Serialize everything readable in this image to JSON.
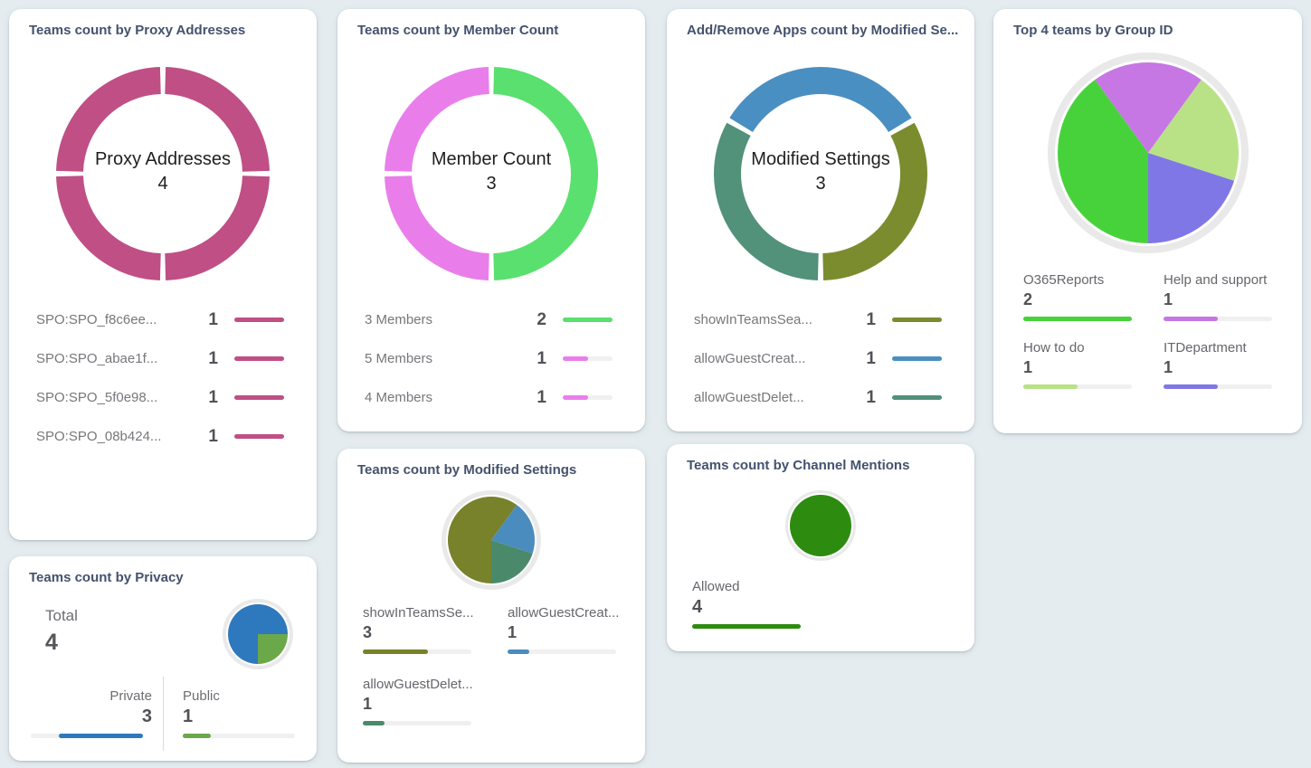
{
  "page": {
    "background": "#e5ecef",
    "bar_track_color": "#f0f0f1",
    "ring_color": "#e9e9e9"
  },
  "chart_data": [
    {
      "id": "teams-count-by-proxy-addresses",
      "type": "donut",
      "title": "Teams count by Proxy Addresses",
      "center_label": "Proxy Addresses",
      "center_value": 4,
      "legend_position": "bottom-list",
      "legend": [
        {
          "label": "SPO:SPO_f8c6ee...",
          "value": 1,
          "color": "#bf4f85"
        },
        {
          "label": "SPO:SPO_abae1f...",
          "value": 1,
          "color": "#bf4f85"
        },
        {
          "label": "SPO:SPO_5f0e98...",
          "value": 1,
          "color": "#bf4f85"
        },
        {
          "label": "SPO:SPO_08b424...",
          "value": 1,
          "color": "#bf4f85"
        }
      ],
      "slices": [
        {
          "value": 1,
          "color": "#bf4f85"
        },
        {
          "value": 1,
          "color": "#bf4f85"
        },
        {
          "value": 1,
          "color": "#bf4f85"
        },
        {
          "value": 1,
          "color": "#bf4f85"
        }
      ],
      "rotation_deg": 0,
      "pad_deg": 3,
      "outer_r": 118,
      "inner_r": 88,
      "bar_norm": "max"
    },
    {
      "id": "teams-count-by-member-count",
      "type": "donut",
      "title": "Teams count by Member Count",
      "center_label": "Member Count",
      "center_value": 3,
      "legend_position": "bottom-list",
      "legend": [
        {
          "label": "3 Members",
          "value": 2,
          "color": "#5ae06e"
        },
        {
          "label": "5 Members",
          "value": 1,
          "color": "#e97eeb"
        },
        {
          "label": "4 Members",
          "value": 1,
          "color": "#e97eeb"
        }
      ],
      "slices": [
        {
          "value": 2,
          "color": "#5ae06e"
        },
        {
          "value": 1,
          "color": "#e97eeb"
        },
        {
          "value": 1,
          "color": "#e97eeb"
        }
      ],
      "rotation_deg": 0,
      "pad_deg": 3,
      "outer_r": 118,
      "inner_r": 88,
      "bar_norm": "max"
    },
    {
      "id": "apps-count-by-modified-settings",
      "type": "donut",
      "title": "Add/Remove Apps count by Modified Se...",
      "center_label": "Modified Settings",
      "center_value": 3,
      "legend_position": "bottom-list",
      "legend": [
        {
          "label": "showInTeamsSea...",
          "value": 1,
          "color": "#7b8c2f"
        },
        {
          "label": "allowGuestCreat...",
          "value": 1,
          "color": "#4a8fc2"
        },
        {
          "label": "allowGuestDelet...",
          "value": 1,
          "color": "#52917a"
        }
      ],
      "slices": [
        {
          "value": 1,
          "color": "#4a8fc2"
        },
        {
          "value": 1,
          "color": "#7b8c2f"
        },
        {
          "value": 1,
          "color": "#52917a"
        }
      ],
      "rotation_deg": -60,
      "pad_deg": 3,
      "outer_r": 118,
      "inner_r": 88,
      "bar_norm": "max"
    },
    {
      "id": "top-4-teams-by-group-id",
      "type": "pie",
      "title": "Top 4 teams by Group ID",
      "legend_position": "bottom-grid",
      "legend": [
        {
          "label": "O365Reports",
          "value": 2,
          "color": "#47d23b"
        },
        {
          "label": "Help and support",
          "value": 1,
          "color": "#c677e4"
        },
        {
          "label": "How to do",
          "value": 1,
          "color": "#b9e287"
        },
        {
          "label": "ITDepartment",
          "value": 1,
          "color": "#8077e6"
        }
      ],
      "slices": [
        {
          "value": 1,
          "color": "#c677e4"
        },
        {
          "value": 1,
          "color": "#b9e287"
        },
        {
          "value": 1,
          "color": "#8077e6"
        },
        {
          "value": 2,
          "color": "#47d23b"
        }
      ],
      "rotation_deg": -36,
      "pad_deg": 0,
      "outer_r": 100,
      "ring_r": 111,
      "ring_gap_r": 103,
      "bar_norm": "max"
    },
    {
      "id": "teams-count-by-privacy",
      "type": "pie",
      "title": "Teams count by Privacy",
      "total_label": "Total",
      "total_value": 4,
      "legend_position": "split-cells",
      "legend": [
        {
          "label": "Private",
          "value": 3,
          "color": "#2e79bd"
        },
        {
          "label": "Public",
          "value": 1,
          "color": "#6ba84a"
        }
      ],
      "slices": [
        {
          "value": 1,
          "color": "#6ba84a"
        },
        {
          "value": 3,
          "color": "#2e79bd"
        }
      ],
      "rotation_deg": 90,
      "pad_deg": 0,
      "outer_r": 33,
      "ring_r": 39,
      "ring_gap_r": 35,
      "bar_norm": "total"
    },
    {
      "id": "teams-count-by-modified-settings",
      "type": "pie",
      "title": "Teams count by Modified Settings",
      "legend_position": "bottom-grid",
      "legend": [
        {
          "label": "showInTeamsSe...",
          "value": 3,
          "color": "#78822a"
        },
        {
          "label": "allowGuestCreat...",
          "value": 1,
          "color": "#4b8cbf"
        },
        {
          "label": "allowGuestDelet...",
          "value": 1,
          "color": "#4a8a6b"
        }
      ],
      "slices": [
        {
          "value": 1,
          "color": "#4b8cbf"
        },
        {
          "value": 1,
          "color": "#4a8a6b"
        },
        {
          "value": 3,
          "color": "#78822a"
        }
      ],
      "rotation_deg": 36,
      "pad_deg": 0,
      "outer_r": 48,
      "ring_r": 55,
      "ring_gap_r": 50,
      "bar_norm": "total"
    },
    {
      "id": "teams-count-by-channel-mentions",
      "type": "pie",
      "title": "Teams count by Channel Mentions",
      "legend_position": "bottom-single",
      "legend": [
        {
          "label": "Allowed",
          "value": 4,
          "color": "#2d8c10"
        }
      ],
      "slices": [
        {
          "value": 4,
          "color": "#2d8c10"
        }
      ],
      "rotation_deg": 0,
      "pad_deg": 0,
      "outer_r": 34,
      "ring_r": 39,
      "ring_gap_r": 36,
      "bar_norm": "total"
    }
  ]
}
